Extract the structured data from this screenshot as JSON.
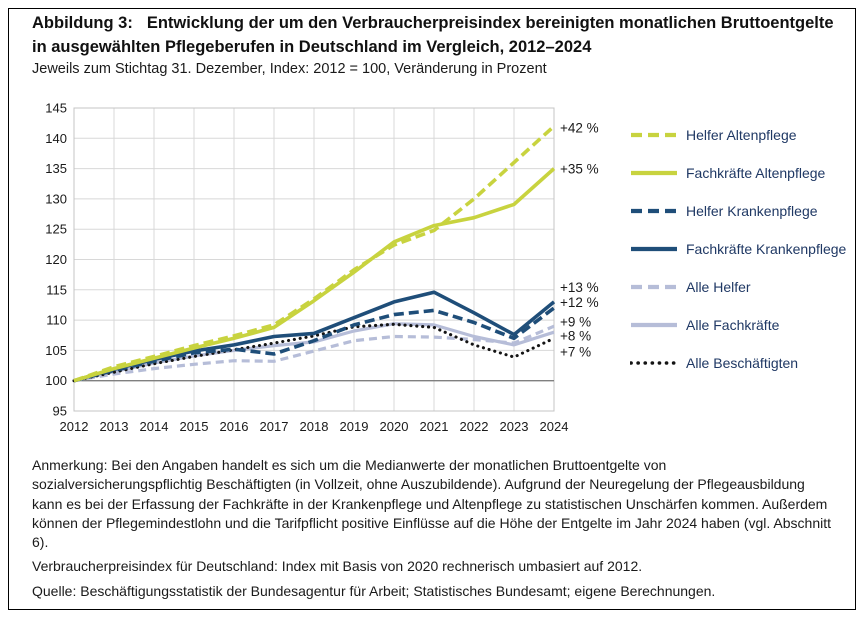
{
  "figure": {
    "title_label": "Abbildung 3:",
    "title_text": "Entwicklung der um den Verbraucherpreisindex bereinigten monatlichen Bruttoentgelte in ausgewählten Pflegeberufen in Deutschland im Vergleich, 2012–2024",
    "subtitle": "Jeweils zum Stichtag 31. Dezember, Index: 2012 = 100, Veränderung in Prozent",
    "anmerkung": "Anmerkung: Bei den Angaben handelt es sich um die Medianwerte der monatlichen Bruttoentgelte von sozialversicherungspflichtig Beschäftigten (in Vollzeit, ohne Auszubildende). Aufgrund der Neuregelung der Pflegeausbildung kann es bei der Erfassung der Fachkräfte in der Krankenpflege und Altenpflege zu statistischen Unschärfen kommen. Außerdem können der Pflegemindestlohn und die Tarifpflicht positive Einflüsse auf die Höhe der Entgelte im Jahr 2024 haben (vgl. Abschnitt 6).",
    "verbraucherpreisindex_note": "Verbraucherpreisindex für Deutschland: Index mit Basis von 2020 rechnerisch umbasiert auf 2012.",
    "quelle": "Quelle: Beschäftigungsstatistik der Bundesagentur für Arbeit; Statistisches Bundesamt; eigene Berechnungen."
  },
  "colors": {
    "lime": "#c8d33f",
    "darkblue": "#1f4e79",
    "lightblue": "#b6bdd8",
    "black": "#141414",
    "grid": "#d8d8d8",
    "plot_frame": "#c4c4c4",
    "baseline": "#808080",
    "axis_text": "#1a1a1a",
    "legend_text": "#1f3864"
  },
  "chart_data": {
    "type": "line",
    "x": [
      2012,
      2013,
      2014,
      2015,
      2016,
      2017,
      2018,
      2019,
      2020,
      2021,
      2022,
      2023,
      2024
    ],
    "ylim": [
      95,
      145
    ],
    "yticks": [
      95,
      100,
      105,
      110,
      115,
      120,
      125,
      130,
      135,
      140,
      145
    ],
    "baseline": 100,
    "grid": true,
    "legend_position": "right",
    "series": [
      {
        "name": "Helfer Altenpflege",
        "style": "dashed",
        "color_key": "lime",
        "z": 7,
        "end_label": "+42 %",
        "label_at": 141.7,
        "values": [
          100,
          102.3,
          104.0,
          105.8,
          107.4,
          109.2,
          113.5,
          118.3,
          122.4,
          124.8,
          130.0,
          136.0,
          142.0
        ]
      },
      {
        "name": "Fachkräfte Altenpflege",
        "style": "solid",
        "color_key": "lime",
        "z": 6,
        "end_label": "+35 %",
        "label_at": 134.9,
        "values": [
          100,
          102.0,
          103.7,
          105.4,
          107.0,
          108.8,
          113.2,
          117.9,
          122.9,
          125.6,
          126.9,
          129.1,
          135.0
        ]
      },
      {
        "name": "Helfer Krankenpflege",
        "style": "dashed",
        "color_key": "darkblue",
        "z": 4,
        "end_label": "+12 %",
        "label_at": 112.9,
        "values": [
          100,
          101.7,
          103.2,
          104.6,
          105.2,
          104.4,
          106.6,
          109.2,
          110.9,
          111.6,
          109.6,
          107.0,
          112.0
        ]
      },
      {
        "name": "Fachkräfte Krankenpflege",
        "style": "solid",
        "color_key": "darkblue",
        "z": 5,
        "end_label": "+13 %",
        "label_at": 115.4,
        "values": [
          100,
          101.9,
          103.5,
          104.9,
          105.9,
          107.3,
          107.8,
          110.4,
          113.0,
          114.6,
          111.2,
          107.6,
          113.0
        ]
      },
      {
        "name": "Alle Helfer",
        "style": "dashed",
        "color_key": "lightblue",
        "z": 2,
        "end_label": "+9 %",
        "label_at": 109.7,
        "values": [
          100,
          101.1,
          102.0,
          102.7,
          103.3,
          103.2,
          104.9,
          106.6,
          107.3,
          107.2,
          106.8,
          106.2,
          109.0
        ]
      },
      {
        "name": "Alle Fachkräfte",
        "style": "solid",
        "color_key": "lightblue",
        "z": 1,
        "end_label": "+8 %",
        "label_at": 107.4,
        "values": [
          100,
          101.5,
          102.9,
          104.1,
          105.0,
          105.8,
          106.4,
          108.2,
          109.4,
          109.2,
          107.3,
          105.9,
          108.0
        ]
      },
      {
        "name": "Alle Beschäftigten",
        "style": "dotted",
        "color_key": "black",
        "z": 3,
        "end_label": "+7 %",
        "label_at": 104.7,
        "values": [
          100,
          101.4,
          102.8,
          104.0,
          105.1,
          106.2,
          107.4,
          108.9,
          109.3,
          108.8,
          105.9,
          103.9,
          107.0
        ]
      }
    ]
  }
}
